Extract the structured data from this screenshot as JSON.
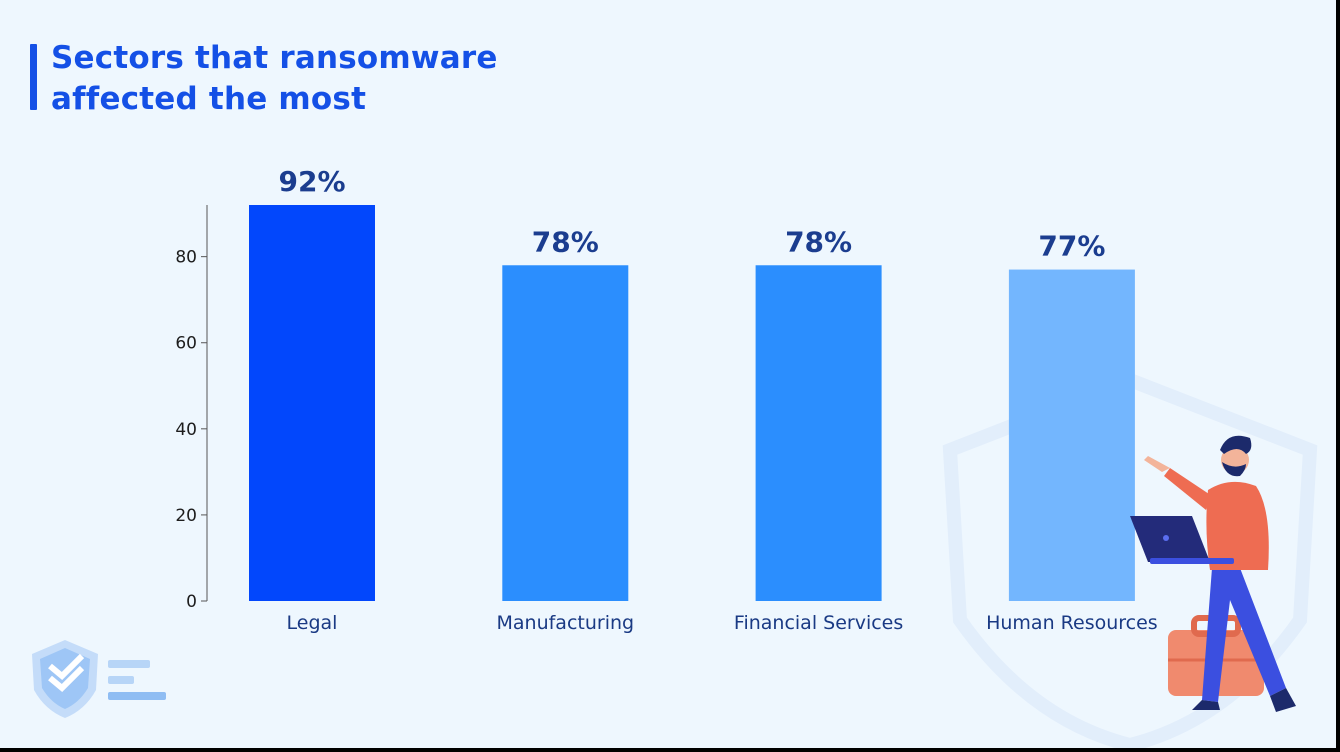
{
  "title_lines": [
    "Sectors that ransomware",
    "affected the most"
  ],
  "icons": [
    "shield-logo-icon",
    "presenter-illustration"
  ],
  "colors": {
    "title": "#1450e6",
    "background": "#eef7fe",
    "value_labels": "#1b3d8f"
  },
  "chart_data": {
    "type": "bar",
    "title": "Sectors that ransomware affected the most",
    "categories": [
      "Legal",
      "Manufacturing",
      "Financial Services",
      "Human Resources"
    ],
    "values": [
      92,
      78,
      78,
      77
    ],
    "value_labels": [
      "92%",
      "78%",
      "78%",
      "77%"
    ],
    "bar_colors": [
      "#0247fc",
      "#2b8efe",
      "#2b8efe",
      "#73b6fe"
    ],
    "ylim": [
      0,
      92
    ],
    "yticks": [
      0,
      20,
      40,
      60,
      80
    ],
    "xlabel": "",
    "ylabel": "",
    "grid": false,
    "legend": "none"
  }
}
